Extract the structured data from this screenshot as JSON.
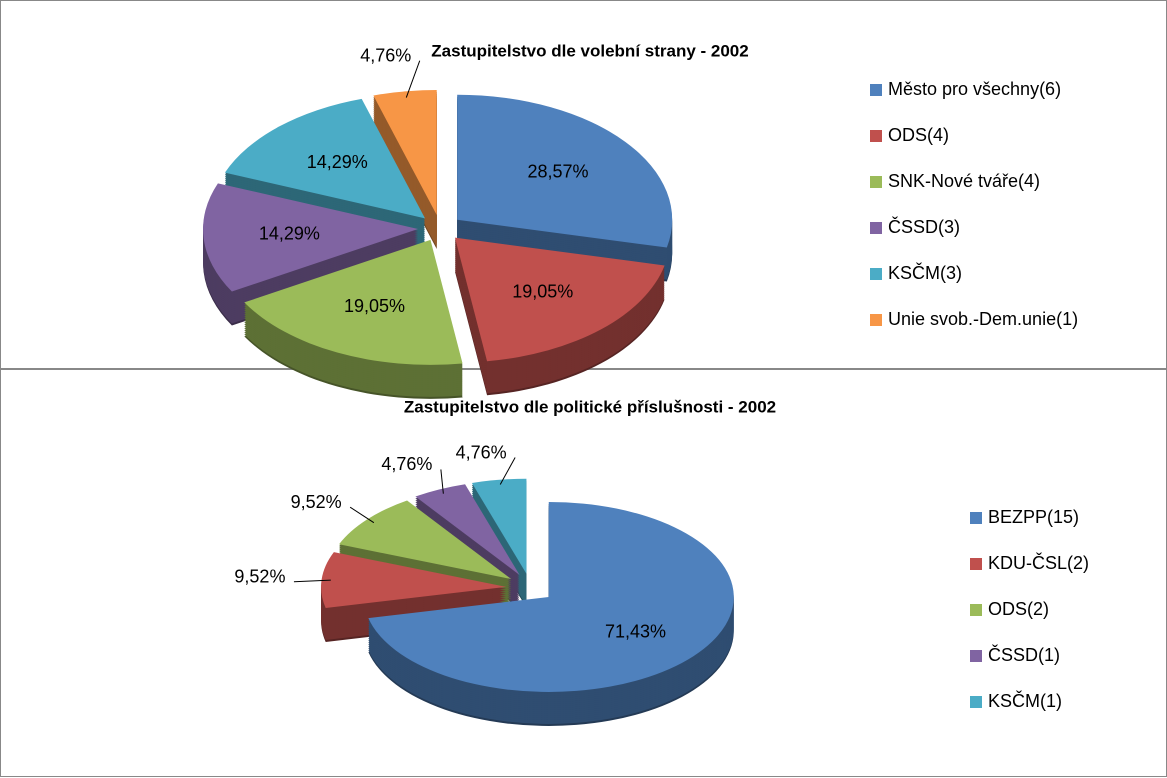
{
  "chart_data": [
    {
      "type": "pie",
      "title": "Zastupitelstvo dle volební strany - 2002",
      "categories": [
        "Město pro všechny(6)",
        "ODS(4)",
        "SNK-Nové tváře(4)",
        "ČSSD(3)",
        "KSČM(3)",
        "Unie svob.-Dem.unie(1)"
      ],
      "values": [
        28.57,
        19.05,
        19.05,
        14.29,
        14.29,
        4.76
      ],
      "value_labels": [
        "28,57%",
        "19,05%",
        "19,05%",
        "14,29%",
        "14,29%",
        "4,76%"
      ],
      "colors": [
        "#4f81bd",
        "#c0504d",
        "#9bbb59",
        "#8064a2",
        "#4bacc6",
        "#f79646"
      ],
      "legend": "right"
    },
    {
      "type": "pie",
      "title": "Zastupitelstvo dle politické příslušnosti - 2002",
      "categories": [
        "BEZPP(15)",
        "KDU-ČSL(2)",
        "ODS(2)",
        "ČSSD(1)",
        "KSČM(1)"
      ],
      "values": [
        71.43,
        9.52,
        9.52,
        4.76,
        4.76
      ],
      "value_labels": [
        "71,43%",
        "9,52%",
        "9,52%",
        "4,76%",
        "4,76%"
      ],
      "colors": [
        "#4f81bd",
        "#c0504d",
        "#9bbb59",
        "#8064a2",
        "#4bacc6"
      ],
      "legend": "right"
    }
  ]
}
